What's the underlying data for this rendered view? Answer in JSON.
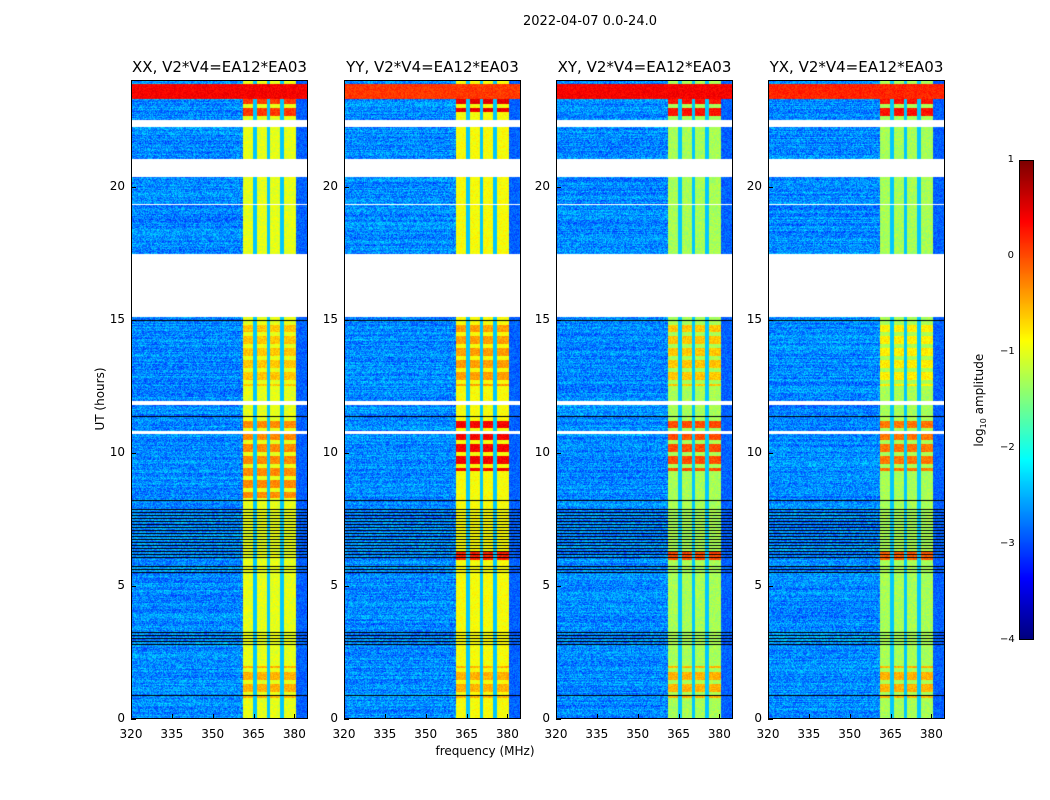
{
  "chart_data": {
    "type": "heatmap",
    "title": "2022-04-07 0.0-24.0",
    "xlabel": "frequency (MHz)",
    "ylabel": "UT (hours)",
    "xlim": [
      320,
      385
    ],
    "ylim": [
      0,
      24
    ],
    "xticks": [
      "320",
      "335",
      "350",
      "365",
      "380"
    ],
    "yticks": [
      "0",
      "5",
      "10",
      "15",
      "20"
    ],
    "colorbar": {
      "label": "log10 amplitude",
      "label_main": "log",
      "label_sub": "10",
      "label_rest": " amplitude",
      "range": [
        -4,
        1
      ],
      "ticks": [
        "−4",
        "−3",
        "−2",
        "−1",
        "0",
        "1"
      ],
      "colormap": "jet"
    },
    "background_level": -2.7,
    "rfi_band_mhz": [
      361,
      380.5
    ],
    "rfi_notches_mhz": [
      365.5,
      370.5,
      375.5
    ],
    "flagged_hours_white": [
      [
        15.1,
        17.45
      ],
      [
        20.35,
        21.05
      ],
      [
        22.25,
        22.5
      ],
      [
        11.8,
        11.95
      ],
      [
        10.7,
        10.8
      ],
      [
        19.3,
        19.35
      ]
    ],
    "flagged_hours_black": [
      [
        0.85,
        0.9
      ],
      [
        2.7,
        3.3
      ],
      [
        5.4,
        5.8
      ],
      [
        6.0,
        7.9
      ],
      [
        8.2,
        8.25
      ],
      [
        11.35,
        11.45
      ],
      [
        14.3,
        14.4
      ],
      [
        14.9,
        15.0
      ]
    ],
    "panels": [
      {
        "title": "XX, V2*V4=EA12*EA03",
        "rfi_level": -1.0,
        "hot": [
          [
            22.5,
            23.5,
            0.1
          ],
          [
            8.3,
            11.2,
            -0.3
          ],
          [
            12.5,
            14.8,
            -0.6
          ],
          [
            0.8,
            2.0,
            -0.5
          ]
        ],
        "top_band": [
          23.3,
          23.85,
          0.4
        ]
      },
      {
        "title": "YY, V2*V4=EA12*EA03",
        "rfi_level": -0.9,
        "hot": [
          [
            22.8,
            23.5,
            0.5
          ],
          [
            9.3,
            11.2,
            0.4
          ],
          [
            12.5,
            14.8,
            -0.4
          ],
          [
            5.9,
            6.3,
            0.2
          ],
          [
            0.8,
            2.0,
            -0.5
          ]
        ],
        "top_band": [
          23.3,
          23.85,
          0.1
        ]
      },
      {
        "title": "XY, V2*V4=EA12*EA03",
        "rfi_level": -1.3,
        "hot": [
          [
            22.6,
            23.5,
            0.3
          ],
          [
            9.3,
            11.2,
            0.0
          ],
          [
            12.5,
            14.8,
            -0.6
          ],
          [
            5.9,
            6.3,
            0.0
          ],
          [
            0.8,
            2.0,
            -0.5
          ]
        ],
        "top_band": [
          23.3,
          23.85,
          0.4
        ]
      },
      {
        "title": "YX, V2*V4=EA12*EA03",
        "rfi_level": -1.3,
        "hot": [
          [
            22.6,
            23.5,
            0.3
          ],
          [
            9.3,
            11.2,
            -0.2
          ],
          [
            12.5,
            14.8,
            -0.8
          ],
          [
            5.9,
            6.3,
            -0.1
          ],
          [
            0.8,
            2.0,
            -0.5
          ]
        ],
        "top_band": [
          23.3,
          23.85,
          0.2
        ]
      }
    ]
  }
}
